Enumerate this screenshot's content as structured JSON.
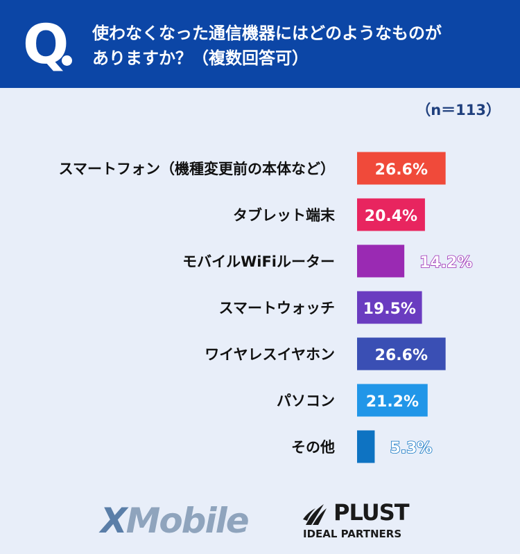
{
  "header": {
    "question_mark": "Q",
    "question_line1": "使わなくなった通信機器にはどのようなものが",
    "question_line2": "ありますか？（複数回答可）"
  },
  "sample_size": "（n＝113）",
  "chart_data": {
    "type": "bar",
    "orientation": "horizontal",
    "categories": [
      "スマートフォン（機種変更前の本体など）",
      "タブレット端末",
      "モバイルWiFiルーター",
      "スマートウォッチ",
      "ワイヤレスイヤホン",
      "パソコン",
      "その他"
    ],
    "values": [
      26.6,
      20.4,
      14.2,
      19.5,
      26.6,
      21.2,
      5.3
    ],
    "value_labels": [
      "26.6%",
      "20.4%",
      "14.2%",
      "19.5%",
      "26.6%",
      "21.2%",
      "5.3%"
    ],
    "colors": [
      "#f04a3a",
      "#e8255f",
      "#9a2ab3",
      "#6a3cc0",
      "#3a4fb4",
      "#2196e8",
      "#0e73c2"
    ],
    "unit": "%",
    "grid": false,
    "legend": "none"
  },
  "footer": {
    "logo1_prefix": "X",
    "logo1_rest": "Mobile",
    "logo2_name": "PLUST",
    "logo2_sub": "IDEAL PARTNERS"
  }
}
